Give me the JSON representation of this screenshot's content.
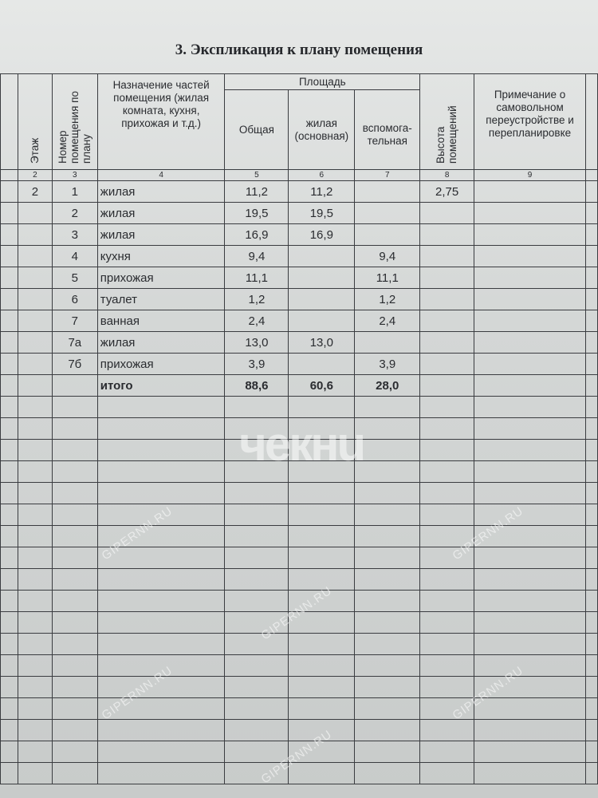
{
  "title": "3. Экспликация к плану помещения",
  "headers": {
    "floor": "Этаж",
    "room_number": "Номер помещения по плану",
    "purpose": "Назначение частей помещения (жилая комната, кухня, прихожая и т.д.)",
    "area": "Площадь",
    "area_total": "Общая",
    "area_living": "жилая (основная)",
    "area_aux": "вспомога-тельная",
    "height": "Высота помещений",
    "note": "Примечание о самовольном переустройстве и перепланировке"
  },
  "column_numbers": [
    "",
    "2",
    "3",
    "4",
    "5",
    "6",
    "7",
    "8",
    "9",
    ""
  ],
  "rows": [
    {
      "floor": "2",
      "num": "1",
      "name": "жилая",
      "total": "11,2",
      "living": "11,2",
      "aux": "",
      "height": "2,75"
    },
    {
      "floor": "",
      "num": "2",
      "name": "жилая",
      "total": "19,5",
      "living": "19,5",
      "aux": "",
      "height": ""
    },
    {
      "floor": "",
      "num": "3",
      "name": "жилая",
      "total": "16,9",
      "living": "16,9",
      "aux": "",
      "height": ""
    },
    {
      "floor": "",
      "num": "4",
      "name": "кухня",
      "total": "9,4",
      "living": "",
      "aux": "9,4",
      "height": ""
    },
    {
      "floor": "",
      "num": "5",
      "name": "прихожая",
      "total": "11,1",
      "living": "",
      "aux": "11,1",
      "height": ""
    },
    {
      "floor": "",
      "num": "6",
      "name": "туалет",
      "total": "1,2",
      "living": "",
      "aux": "1,2",
      "height": ""
    },
    {
      "floor": "",
      "num": "7",
      "name": "ванная",
      "total": "2,4",
      "living": "",
      "aux": "2,4",
      "height": ""
    },
    {
      "floor": "",
      "num": "7а",
      "name": "жилая",
      "total": "13,0",
      "living": "13,0",
      "aux": "",
      "height": ""
    },
    {
      "floor": "",
      "num": "7б",
      "name": "прихожая",
      "total": "3,9",
      "living": "",
      "aux": "3,9",
      "height": ""
    },
    {
      "floor": "",
      "num": "",
      "name": "итого",
      "total": "88,6",
      "living": "60,6",
      "aux": "28,0",
      "height": ""
    }
  ],
  "empty_row_count": 18,
  "watermark": "GIPERNN.RU",
  "logo": "чекнu"
}
